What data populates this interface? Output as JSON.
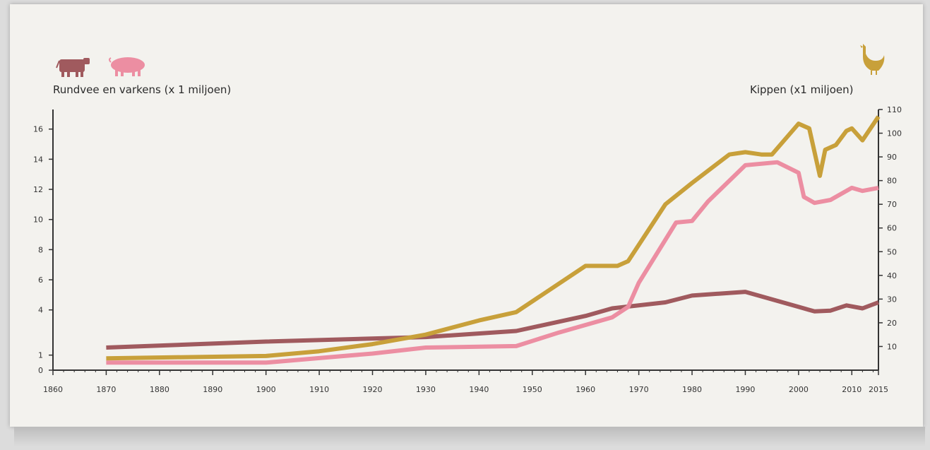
{
  "colors": {
    "cattle": "#a05a5e",
    "pigs": "#ec8ea2",
    "chickens": "#c8a03a",
    "axis": "#333333"
  },
  "icons": {
    "cattle": "cow-icon",
    "pigs": "pig-icon",
    "chickens": "chicken-icon"
  },
  "chart_data": {
    "type": "line",
    "left_axis_label": "Rundvee en varkens (x 1 miljoen)",
    "right_axis_label": "Kippen (x1 miljoen)",
    "x_ticks": [
      1860,
      1870,
      1880,
      1890,
      1900,
      1910,
      1920,
      1930,
      1940,
      1950,
      1960,
      1970,
      1980,
      1990,
      2000,
      2010,
      2015
    ],
    "xlim": [
      1860,
      2015
    ],
    "left_ticks": [
      0,
      1,
      4,
      6,
      8,
      10,
      12,
      14,
      16
    ],
    "left_ylim": [
      0,
      17.3
    ],
    "right_ticks": [
      10,
      20,
      30,
      40,
      50,
      60,
      70,
      80,
      90,
      100,
      110
    ],
    "right_ylim": [
      0,
      110
    ],
    "series": [
      {
        "key": "cattle",
        "axis": "left",
        "x": [
          1870,
          1900,
          1930,
          1947,
          1960,
          1965,
          1975,
          1980,
          1990,
          2000,
          2003,
          2006,
          2009,
          2012,
          2015
        ],
        "y": [
          1.5,
          1.9,
          2.2,
          2.6,
          3.6,
          4.1,
          4.5,
          4.95,
          5.2,
          4.2,
          3.9,
          3.95,
          4.3,
          4.1,
          4.5
        ]
      },
      {
        "key": "pigs",
        "axis": "left",
        "x": [
          1870,
          1900,
          1910,
          1920,
          1930,
          1947,
          1955,
          1965,
          1968,
          1970,
          1977,
          1980,
          1983,
          1990,
          1996,
          2000,
          2001,
          2003,
          2006,
          2010,
          2012,
          2015
        ],
        "y": [
          0.5,
          0.5,
          0.8,
          1.1,
          1.5,
          1.6,
          2.5,
          3.5,
          4.2,
          5.8,
          9.8,
          9.9,
          11.2,
          13.6,
          13.8,
          13.1,
          11.5,
          11.1,
          11.3,
          12.1,
          11.9,
          12.1
        ]
      },
      {
        "key": "chickens",
        "axis": "right",
        "x": [
          1870,
          1900,
          1910,
          1920,
          1930,
          1940,
          1947,
          1960,
          1966,
          1968,
          1975,
          1980,
          1987,
          1990,
          1993,
          1995,
          2000,
          2002,
          2004,
          2005,
          2007,
          2009,
          2010,
          2012,
          2015
        ],
        "y": [
          5,
          6,
          8,
          11,
          15,
          21,
          24.5,
          44,
          44,
          46,
          70,
          79,
          91,
          92,
          91,
          91,
          104,
          102,
          82,
          93,
          95,
          101,
          102,
          97,
          107
        ]
      }
    ]
  }
}
